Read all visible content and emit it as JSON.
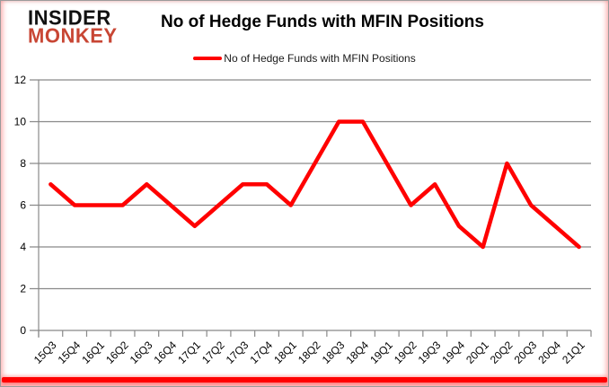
{
  "logo": {
    "line1": "INSIDER",
    "line2": "MONKEY"
  },
  "header": {
    "title": "No of Hedge Funds with MFIN Positions"
  },
  "legend": {
    "label": "No of Hedge Funds with MFIN Positions"
  },
  "colors": {
    "line": "#ff0000",
    "grid": "#898989",
    "axis": "#898989",
    "tick_text": "#000000",
    "logo_black": "#111111",
    "logo_red": "#c84634",
    "bottom_bar": "#ff0000"
  },
  "chart_data": {
    "type": "line",
    "title": "No of Hedge Funds with MFIN Positions",
    "categories": [
      "15Q3",
      "15Q4",
      "16Q1",
      "16Q2",
      "16Q3",
      "16Q4",
      "17Q1",
      "17Q2",
      "17Q3",
      "17Q4",
      "18Q1",
      "18Q2",
      "18Q3",
      "18Q4",
      "19Q1",
      "19Q2",
      "19Q3",
      "19Q4",
      "20Q1",
      "20Q2",
      "20Q3",
      "20Q4",
      "21Q1"
    ],
    "series": [
      {
        "name": "No of Hedge Funds with MFIN Positions",
        "values": [
          7,
          6,
          6,
          6,
          7,
          6,
          5,
          6,
          7,
          7,
          6,
          8,
          10,
          10,
          8,
          6,
          7,
          5,
          4,
          8,
          6,
          5,
          4
        ]
      }
    ],
    "xlabel": "",
    "ylabel": "",
    "ylim": [
      0,
      12
    ],
    "ytick_step": 2,
    "yticks": [
      0,
      2,
      4,
      6,
      8,
      10,
      12
    ],
    "grid": true,
    "legend_position": "top-center"
  }
}
